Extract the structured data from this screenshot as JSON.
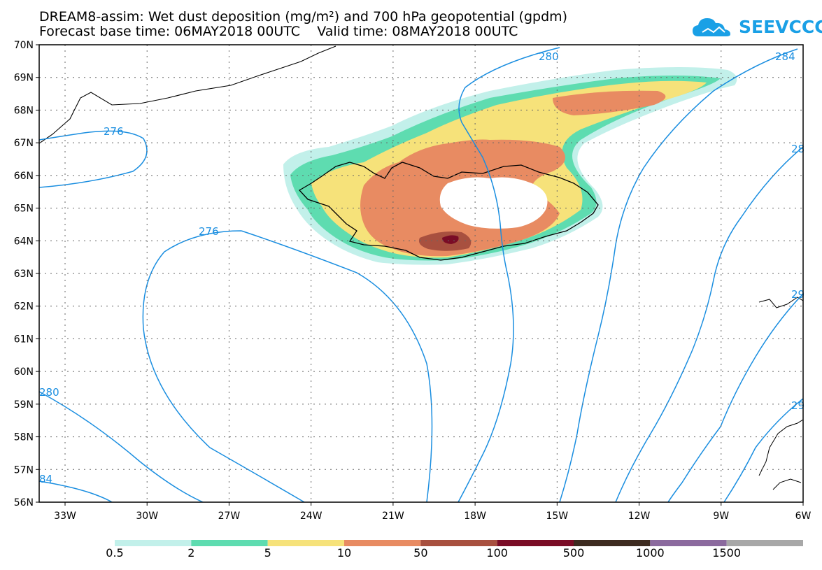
{
  "title": {
    "line1": "DREAM8-assim: Wet dust deposition (mg/m²) and 700 hPa geopotential (gpdm)",
    "line2": "Forecast base time: 06MAY2018 00UTC    Valid time: 08MAY2018 00UTC"
  },
  "logo": {
    "text": "SEEVCCC",
    "icon": "cloud-logo-icon"
  },
  "axes": {
    "lat_labels": [
      "70N",
      "69N",
      "68N",
      "67N",
      "66N",
      "65N",
      "64N",
      "63N",
      "62N",
      "61N",
      "60N",
      "59N",
      "58N",
      "57N",
      "56N"
    ],
    "lon_labels": [
      "33W",
      "30W",
      "27W",
      "24W",
      "21W",
      "18W",
      "15W",
      "12W",
      "9W",
      "6W"
    ]
  },
  "contour_labels": [
    "276",
    "276",
    "280",
    "284",
    "280",
    "84",
    "28",
    "29",
    "29"
  ],
  "colorbar": {
    "labels": [
      "0.5",
      "2",
      "5",
      "10",
      "50",
      "100",
      "500",
      "1000",
      "1500"
    ],
    "colors": [
      "#c2f0ea",
      "#5edcb0",
      "#f6e27a",
      "#e88b62",
      "#a8503f",
      "#7a0c26",
      "#3d2b20",
      "#8b6a9e",
      "#a8a8a8"
    ]
  },
  "colors": {
    "contour": "#1a8ee0",
    "grid": "#666666"
  }
}
